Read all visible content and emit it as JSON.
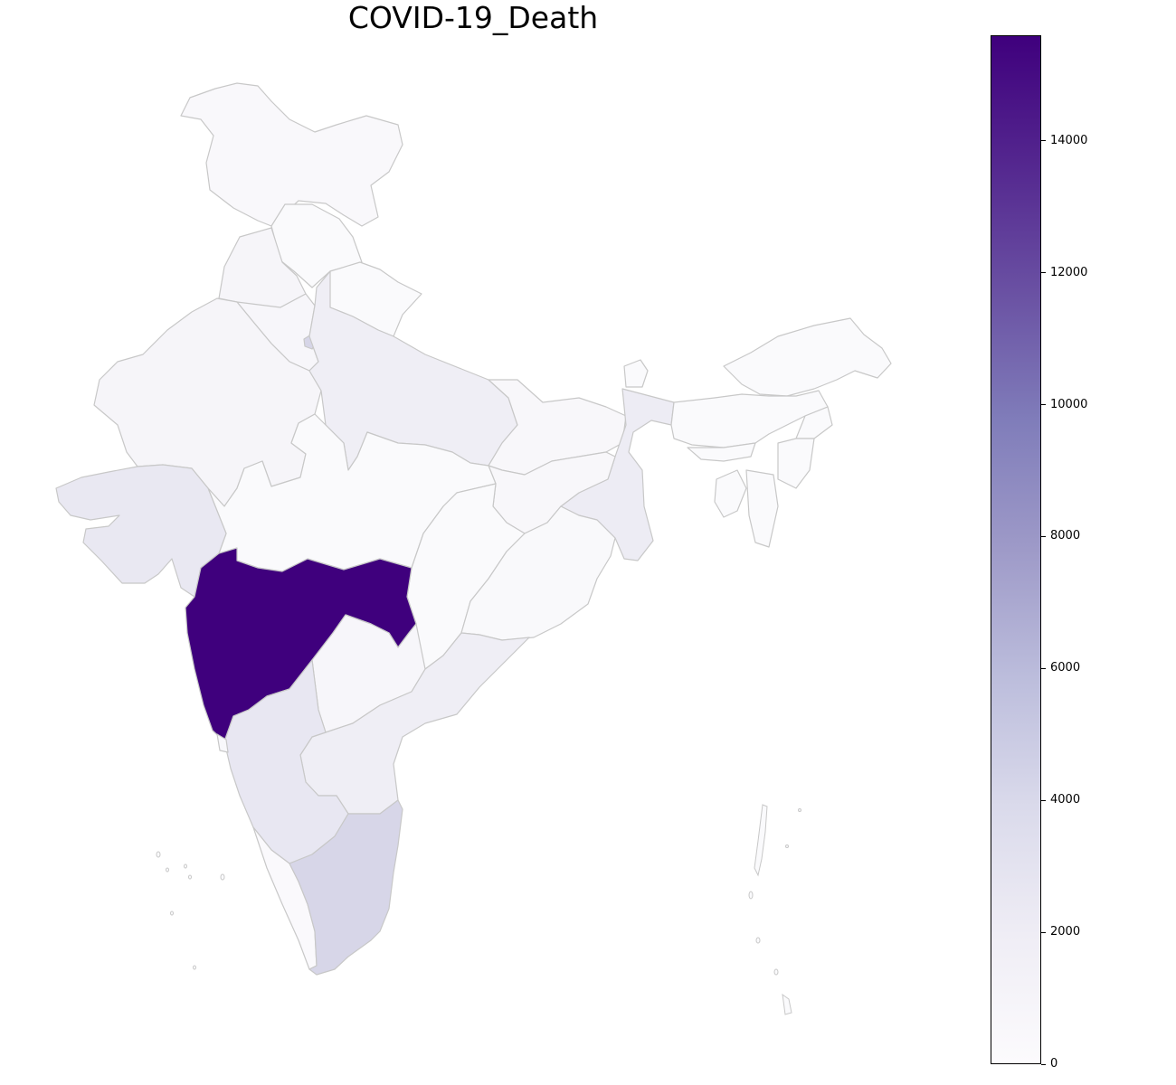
{
  "title": "COVID-19_Death",
  "colorbar": {
    "min": 0,
    "max": 15600,
    "colors": [
      "#fcfbfd",
      "#efedf5",
      "#dadaeb",
      "#bcbddc",
      "#9e9ac8",
      "#807dba",
      "#6a51a3",
      "#54278f",
      "#3f007d"
    ],
    "ticks": [
      {
        "value": 0,
        "label": "0"
      },
      {
        "value": 2000,
        "label": "2000"
      },
      {
        "value": 4000,
        "label": "4000"
      },
      {
        "value": 6000,
        "label": "6000"
      },
      {
        "value": 8000,
        "label": "8000"
      },
      {
        "value": 10000,
        "label": "10000"
      },
      {
        "value": 12000,
        "label": "12000"
      },
      {
        "value": 14000,
        "label": "14000"
      }
    ]
  },
  "border_color": "#c8c8c8",
  "chart_data": {
    "type": "choropleth",
    "title": "COVID-19_Death",
    "colormap": "Purples",
    "range": [
      0,
      15600
    ],
    "highlight_max_region": "Maharashtra"
  }
}
